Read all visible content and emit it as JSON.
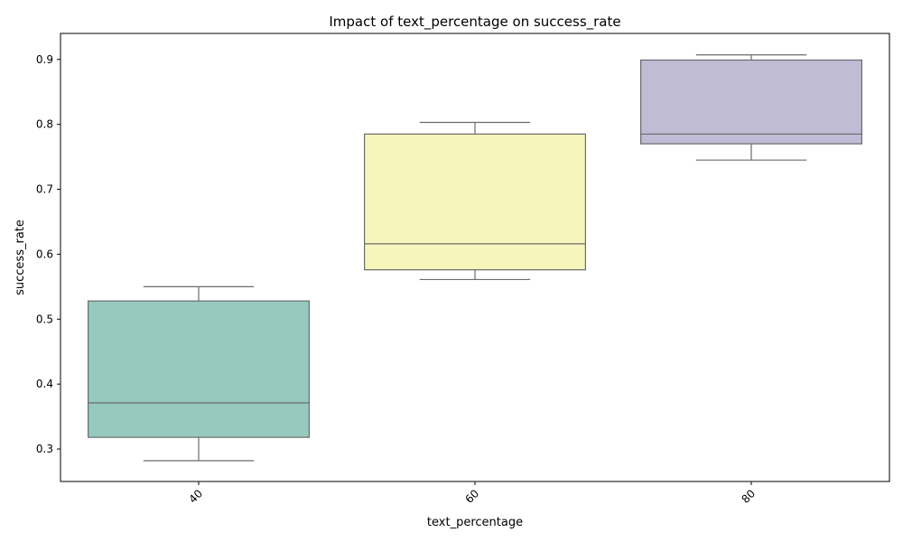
{
  "chart_data": {
    "type": "box",
    "title": "Impact of text_percentage on success_rate",
    "xlabel": "text_percentage",
    "ylabel": "success_rate",
    "categories": [
      "40",
      "60",
      "80"
    ],
    "ylim": [
      0.25,
      0.94
    ],
    "yticks": [
      0.3,
      0.4,
      0.5,
      0.6,
      0.7,
      0.8,
      0.9
    ],
    "ytick_labels": [
      "0.3",
      "0.4",
      "0.5",
      "0.6",
      "0.7",
      "0.8",
      "0.9"
    ],
    "x_tick_rotation_deg": 45,
    "grid": false,
    "boxes": [
      {
        "category": "40",
        "whisker_low": 0.282,
        "q1": 0.318,
        "median": 0.371,
        "q3": 0.528,
        "whisker_high": 0.55,
        "color": "#96c9bf"
      },
      {
        "category": "60",
        "whisker_low": 0.561,
        "q1": 0.576,
        "median": 0.616,
        "q3": 0.785,
        "whisker_high": 0.803,
        "color": "#f6f6bc"
      },
      {
        "category": "80",
        "whisker_low": 0.745,
        "q1": 0.77,
        "median": 0.785,
        "q3": 0.899,
        "whisker_high": 0.907,
        "color": "#c0bcd6"
      }
    ],
    "line_color": "#6b6b6b"
  }
}
